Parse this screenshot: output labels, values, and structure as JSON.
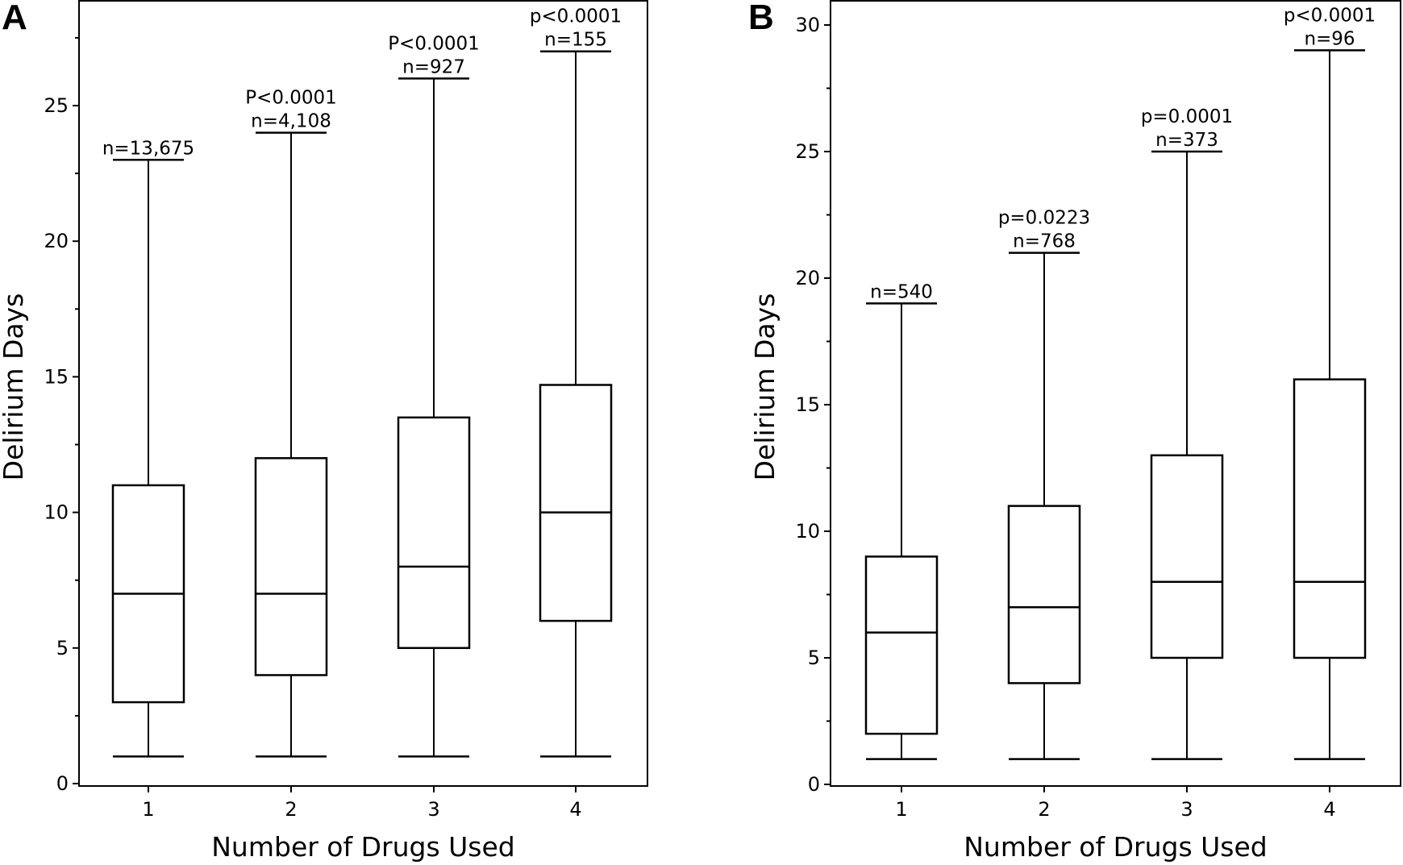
{
  "chart_data": [
    {
      "panel": "A",
      "type": "box",
      "xlabel": "Number of Drugs Used",
      "ylabel": "Delirium Days",
      "ylim": [
        0,
        28
      ],
      "yticks": [
        0,
        5,
        10,
        15,
        20,
        25
      ],
      "categories": [
        "1",
        "2",
        "3",
        "4"
      ],
      "boxes": [
        {
          "category": "1",
          "min": 1,
          "q1": 3,
          "median": 7,
          "q3": 11,
          "max": 23,
          "n_label": "n=13,675",
          "p_label": ""
        },
        {
          "category": "2",
          "min": 1,
          "q1": 4,
          "median": 7,
          "q3": 12,
          "max": 24,
          "n_label": "n=4,108",
          "p_label": "P<0.0001"
        },
        {
          "category": "3",
          "min": 1,
          "q1": 5,
          "median": 8,
          "q3": 13.5,
          "max": 26,
          "n_label": "n=927",
          "p_label": "P<0.0001"
        },
        {
          "category": "4",
          "min": 1,
          "q1": 6,
          "median": 10,
          "q3": 14.7,
          "max": 27,
          "n_label": "n=155",
          "p_label": "p<0.0001"
        }
      ],
      "grid": false
    },
    {
      "panel": "B",
      "type": "box",
      "xlabel": "Number of Drugs Used",
      "ylabel": "Delirium Days",
      "ylim": [
        0,
        30.5
      ],
      "yticks": [
        0,
        5,
        10,
        15,
        20,
        25,
        30
      ],
      "categories": [
        "1",
        "2",
        "3",
        "4"
      ],
      "boxes": [
        {
          "category": "1",
          "min": 1,
          "q1": 2,
          "median": 6,
          "q3": 9,
          "max": 19,
          "n_label": "n=540",
          "p_label": ""
        },
        {
          "category": "2",
          "min": 1,
          "q1": 4,
          "median": 7,
          "q3": 11,
          "max": 21,
          "n_label": "n=768",
          "p_label": "p=0.0223"
        },
        {
          "category": "3",
          "min": 1,
          "q1": 5,
          "median": 8,
          "q3": 13,
          "max": 25,
          "n_label": "n=373",
          "p_label": "p=0.0001"
        },
        {
          "category": "4",
          "min": 1,
          "q1": 5,
          "median": 8,
          "q3": 16,
          "max": 29,
          "n_label": "n=96",
          "p_label": "p<0.0001"
        }
      ],
      "grid": false
    }
  ]
}
